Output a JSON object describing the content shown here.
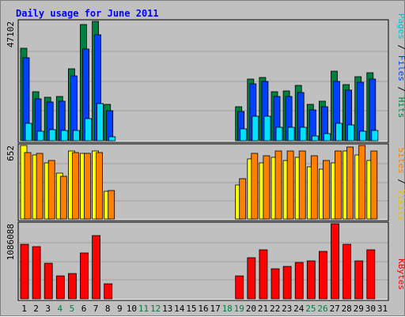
{
  "chart_data": {
    "type": "bar",
    "title": "Daily usage for June 2011",
    "categories": [
      "1",
      "2",
      "3",
      "4",
      "5",
      "6",
      "7",
      "8",
      "9",
      "10",
      "11",
      "12",
      "13",
      "14",
      "15",
      "16",
      "17",
      "18",
      "19",
      "20",
      "21",
      "22",
      "23",
      "24",
      "25",
      "26",
      "27",
      "28",
      "29",
      "30",
      "31"
    ],
    "weekend_days": [
      4,
      5,
      11,
      12,
      18,
      19,
      25,
      26
    ],
    "panels": [
      {
        "id": "top",
        "max_label": "47102",
        "ylim": [
          0,
          47102
        ],
        "series": [
          {
            "name": "Hits",
            "color": "#008040",
            "values": [
              36600,
              19400,
              17100,
              17600,
              28500,
              45700,
              47000,
              14300,
              null,
              null,
              null,
              null,
              null,
              null,
              null,
              null,
              null,
              null,
              13400,
              24400,
              25000,
              19400,
              19700,
              21700,
              14300,
              15600,
              27300,
              22100,
              25200,
              26700,
              null
            ]
          },
          {
            "name": "Files",
            "color": "#0040ff",
            "values": [
              32800,
              16400,
              15400,
              15600,
              25700,
              36200,
              41800,
              11800,
              null,
              null,
              null,
              null,
              null,
              null,
              null,
              null,
              null,
              null,
              11600,
              22600,
              23500,
              17400,
              17600,
              19000,
              12100,
              13500,
              23500,
              19900,
              23000,
              24300,
              null
            ]
          },
          {
            "name": "Pages",
            "color": "#00e0ff",
            "values": [
              6800,
              3600,
              4300,
              4000,
              4100,
              8800,
              14600,
              1500,
              null,
              null,
              null,
              null,
              null,
              null,
              null,
              null,
              null,
              null,
              4800,
              9700,
              9600,
              5300,
              5300,
              5300,
              2000,
              2700,
              6900,
              6300,
              3600,
              4100,
              null
            ]
          }
        ]
      },
      {
        "id": "middle",
        "max_label": "652",
        "ylim": [
          0,
          652
        ],
        "series": [
          {
            "name": "Visits",
            "color": "#ffff00",
            "values": [
              652,
              570,
              500,
              410,
              600,
              580,
              600,
              245,
              null,
              null,
              null,
              null,
              null,
              null,
              null,
              null,
              null,
              null,
              300,
              530,
              500,
              550,
              520,
              550,
              460,
              440,
              500,
              600,
              570,
              520,
              null
            ]
          },
          {
            "name": "Sites",
            "color": "#ff8000",
            "values": [
              590,
              580,
              520,
              380,
              590,
              580,
              590,
              250,
              null,
              null,
              null,
              null,
              null,
              null,
              null,
              null,
              null,
              null,
              360,
              580,
              560,
              600,
              600,
              600,
              560,
              520,
              600,
              640,
              650,
              600,
              null
            ]
          }
        ]
      },
      {
        "id": "bottom",
        "max_label": "1086088",
        "ylim": [
          0,
          1086088
        ],
        "series": [
          {
            "name": "KBytes",
            "color": "#ff0000",
            "values": [
              790000,
              760000,
              520000,
              330000,
              370000,
              660000,
              920000,
              220000,
              null,
              null,
              null,
              null,
              null,
              null,
              null,
              null,
              null,
              null,
              330000,
              600000,
              710000,
              430000,
              470000,
              530000,
              550000,
              690000,
              1086088,
              790000,
              550000,
              710000,
              null
            ]
          }
        ]
      }
    ],
    "right_labels": [
      {
        "panel": "top",
        "parts": [
          {
            "text": "Pages",
            "color": "#00c0d0"
          },
          {
            "text": " / ",
            "color": "#000000"
          },
          {
            "text": "Files",
            "color": "#0040ff"
          },
          {
            "text": " / ",
            "color": "#000000"
          },
          {
            "text": "Hits",
            "color": "#008040"
          }
        ]
      },
      {
        "panel": "middle",
        "parts": [
          {
            "text": "Sites",
            "color": "#ff8000"
          },
          {
            "text": " / ",
            "color": "#000000"
          },
          {
            "text": "Visits",
            "color": "#e0c000"
          }
        ]
      },
      {
        "panel": "bottom",
        "parts": [
          {
            "text": "KBytes",
            "color": "#ff0000"
          }
        ]
      }
    ],
    "colors": {
      "weekday_label": "#000000",
      "weekend_label": "#008040",
      "title": "#0000ff",
      "background": "#c0c0c0",
      "grid": "#a0a0a0"
    },
    "grid": true,
    "legend": "right"
  }
}
